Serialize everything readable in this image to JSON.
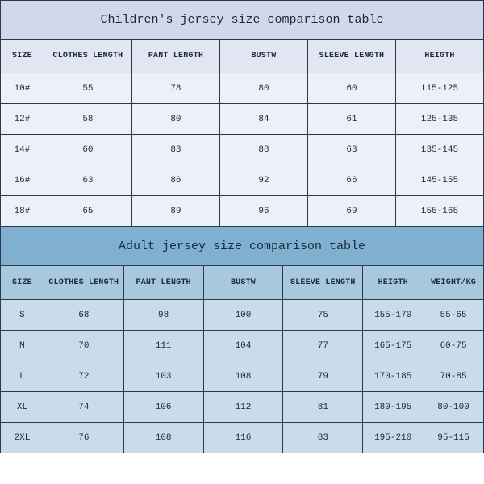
{
  "children": {
    "title": "Children's jersey size comparison table",
    "columns": [
      "SIZE",
      "CLOTHES LENGTH",
      "PANT LENGTH",
      "BUSTW",
      "SLEEVE LENGTH",
      "HEIGTH"
    ],
    "rows": [
      [
        "10#",
        "55",
        "78",
        "80",
        "60",
        "115-125"
      ],
      [
        "12#",
        "58",
        "80",
        "84",
        "61",
        "125-135"
      ],
      [
        "14#",
        "60",
        "83",
        "88",
        "63",
        "135-145"
      ],
      [
        "16#",
        "63",
        "86",
        "92",
        "66",
        "145-155"
      ],
      [
        "18#",
        "65",
        "89",
        "96",
        "69",
        "155-165"
      ]
    ],
    "title_bg": "#d0d8ec",
    "header_bg": "#e2e6f2",
    "row_bg": "#eef0f8",
    "border_color": "#2a3a4a",
    "text_color": "#1a2a3a"
  },
  "adult": {
    "title": "Adult jersey size comparison table",
    "columns": [
      "SIZE",
      "CLOTHES LENGTH",
      "PANT LENGTH",
      "BUSTW",
      "SLEEVE LENGTH",
      "HEIGTH",
      "WEIGHT/KG"
    ],
    "rows": [
      [
        "S",
        "68",
        "98",
        "100",
        "75",
        "155-170",
        "55-65"
      ],
      [
        "M",
        "70",
        "111",
        "104",
        "77",
        "165-175",
        "60-75"
      ],
      [
        "L",
        "72",
        "103",
        "108",
        "79",
        "170-185",
        "70-85"
      ],
      [
        "XL",
        "74",
        "106",
        "112",
        "81",
        "180-195",
        "80-100"
      ],
      [
        "2XL",
        "76",
        "108",
        "116",
        "83",
        "195-210",
        "95-115"
      ]
    ],
    "title_bg": "#7fb0d0",
    "header_bg": "#a8c8de",
    "row_bg": "#c8dcea",
    "border_color": "#2a3a4a",
    "text_color": "#1a2a3a"
  },
  "fonts": {
    "family": "Courier New, monospace",
    "title_pt": 15,
    "header_pt": 10,
    "cell_pt": 11
  }
}
